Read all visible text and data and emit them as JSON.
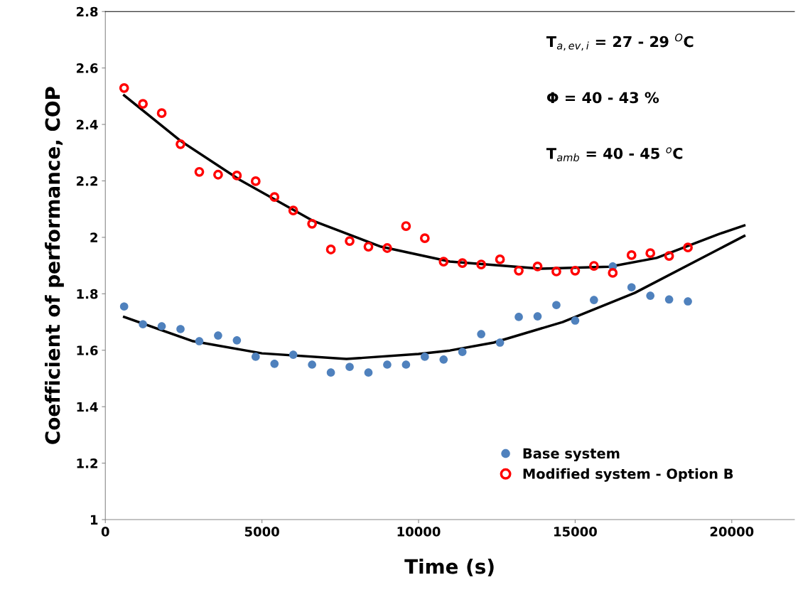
{
  "chart_data": {
    "type": "scatter",
    "xlabel": "Time (s)",
    "ylabel": "Coefficient of performance, COP",
    "annotations": [
      "T$_{a,ev,i}$ = 27 - 29 $^{O}$C",
      "Φ = 40 - 43 %",
      "T$_{amb}$ = 40 - 45 $^{o}$C"
    ],
    "x": [
      600,
      1200,
      1800,
      2400,
      3000,
      3600,
      4200,
      4800,
      5400,
      6000,
      6600,
      7200,
      7800,
      8400,
      9000,
      9600,
      10200,
      10800,
      11400,
      12000,
      12600,
      13200,
      13800,
      14400,
      15000,
      15600,
      16200,
      16800,
      17400,
      18000,
      18600
    ],
    "series": [
      {
        "name": "Base system",
        "color": "#4f81bd",
        "marker": "circle",
        "values": [
          1.755,
          1.692,
          1.685,
          1.675,
          1.632,
          1.652,
          1.635,
          1.577,
          1.552,
          1.584,
          1.549,
          1.521,
          1.541,
          1.521,
          1.549,
          1.549,
          1.577,
          1.567,
          1.594,
          1.657,
          1.627,
          1.718,
          1.72,
          1.76,
          1.705,
          1.778,
          1.897,
          1.823,
          1.793,
          1.78,
          1.773
        ]
      },
      {
        "name": "Modified system - Option B",
        "color": "#ff0000",
        "marker": "circle",
        "values": [
          2.529,
          2.473,
          2.44,
          2.33,
          2.232,
          2.222,
          2.219,
          2.199,
          2.143,
          2.095,
          2.048,
          1.957,
          1.987,
          1.967,
          1.962,
          2.04,
          1.997,
          1.914,
          1.909,
          1.904,
          1.922,
          1.882,
          1.897,
          1.879,
          1.882,
          1.899,
          1.874,
          1.937,
          1.944,
          1.934,
          1.964
        ]
      },
      {
        "type": "line",
        "color": "#000000",
        "marker": "none",
        "x": [
          600,
          2800,
          5000,
          7700,
          10000,
          11000,
          12400,
          14600,
          16900,
          19600,
          20400
        ],
        "values": [
          1.718,
          1.632,
          1.589,
          1.569,
          1.587,
          1.599,
          1.627,
          1.7,
          1.803,
          1.959,
          2.005
        ]
      },
      {
        "type": "line",
        "color": "#000000",
        "marker": "none",
        "x": [
          600,
          2400,
          4300,
          6600,
          8800,
          11000,
          13900,
          16100,
          17600,
          19600,
          20400
        ],
        "values": [
          2.503,
          2.342,
          2.203,
          2.06,
          1.967,
          1.914,
          1.889,
          1.896,
          1.927,
          2.012,
          2.042
        ]
      }
    ],
    "xlim": [
      0,
      22000
    ],
    "xticks": [
      0,
      5000,
      10000,
      15000,
      20000
    ],
    "ylim": [
      1,
      2.8
    ],
    "yticks": [
      1,
      1.2,
      1.4,
      1.6,
      1.8,
      2,
      2.2,
      2.4,
      2.6,
      2.8
    ],
    "grid": false,
    "legend": "bottom right"
  }
}
